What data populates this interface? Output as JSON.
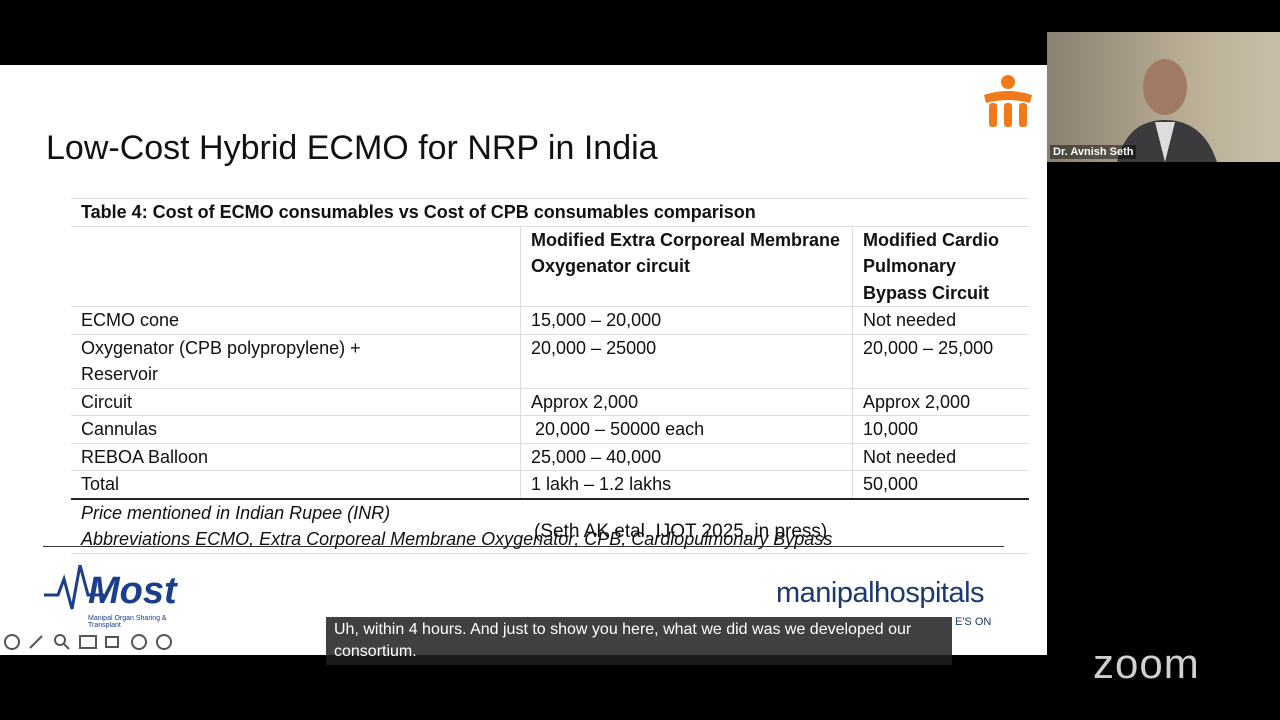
{
  "slide": {
    "title": "Low-Cost Hybrid ECMO for NRP in India",
    "table": {
      "caption": "Table 4: Cost of ECMO consumables vs Cost of CPB consumables comparison",
      "headers": [
        "",
        "Modified Extra Corporeal Membrane Oxygenator circuit",
        "Modified Cardio Pulmonary Bypass Circuit"
      ],
      "rows": [
        [
          "ECMO cone",
          "15,000 – 20,000",
          "Not needed"
        ],
        [
          "Oxygenator (CPB polypropylene) + Reservoir",
          "20,000 – 25000",
          "20,000 – 25,000"
        ],
        [
          "Circuit",
          "Approx 2,000",
          "Approx 2,000"
        ],
        [
          "Cannulas",
          "20,000 – 50000 each",
          "10,000"
        ],
        [
          "REBOA Balloon",
          "25,000 – 40,000",
          "Not needed"
        ],
        [
          "Total",
          "1 lakh – 1.2 lakhs",
          "50,000"
        ]
      ],
      "notes": [
        "Price mentioned in Indian Rupee (INR)",
        "Abbreviations ECMO, Extra Corporeal Membrane Oxygenator; CPB, Cardiopulmonary Bypass"
      ]
    },
    "citation": "(Seth AK etal. IJOT 2025, in press)",
    "logo_left": {
      "name": "Most",
      "subtitle": "Manipal Organ Sharing & Transplant"
    },
    "logo_right": {
      "name": "manipalhospitals",
      "tagline": "E'S ON"
    }
  },
  "video": {
    "participant": "Dr. Avnish Seth"
  },
  "subtitle": "Uh, within 4 hours. And just to show you here, what we did was we developed our consortium.",
  "app_logo": "zoom"
}
